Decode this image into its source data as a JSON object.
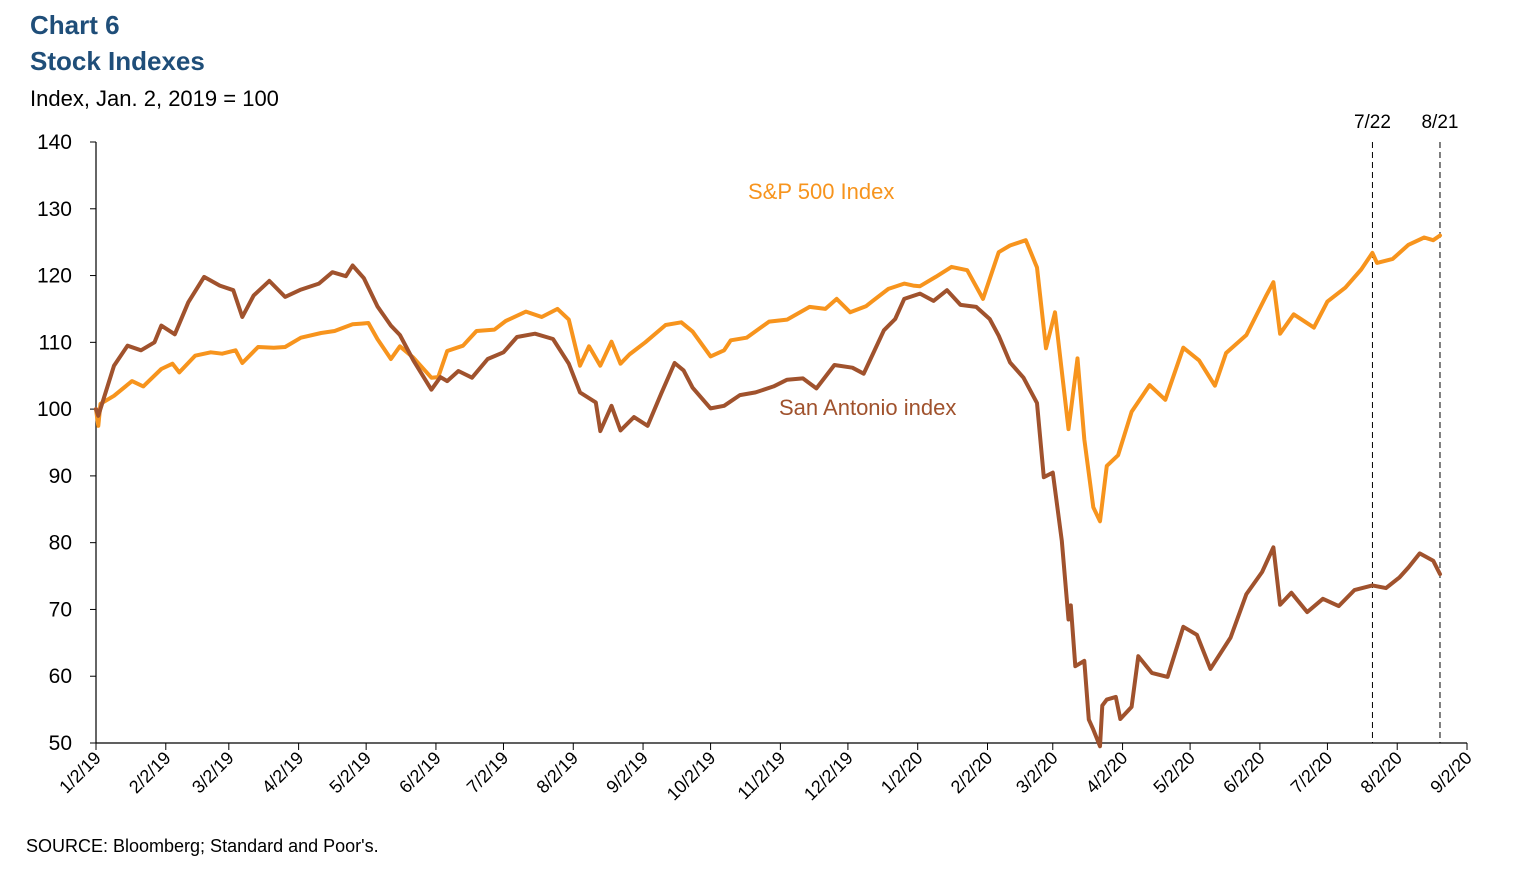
{
  "header": {
    "chart_number": "Chart 6",
    "title": "Stock Indexes",
    "subtitle": "Index, Jan. 2, 2019 = 100"
  },
  "source": "SOURCE: Bloomberg; Standard and Poor's.",
  "colors": {
    "sp500": "#f7941d",
    "san_antonio": "#a0522d",
    "title": "#1f4e79"
  },
  "chart_data": {
    "type": "line",
    "title": "Stock Indexes",
    "ylabel": "Index, Jan. 2, 2019 = 100",
    "xlabel": "",
    "ylim": [
      50,
      140
    ],
    "yticks": [
      50,
      60,
      70,
      80,
      90,
      100,
      110,
      120,
      130,
      140
    ],
    "xlim": [
      "2019-01-02",
      "2020-09-02"
    ],
    "xtick_dates": [
      "2019-01-02",
      "2019-02-02",
      "2019-03-02",
      "2019-04-02",
      "2019-05-02",
      "2019-06-02",
      "2019-07-02",
      "2019-08-02",
      "2019-09-02",
      "2019-10-02",
      "2019-11-02",
      "2019-12-02",
      "2020-01-02",
      "2020-02-02",
      "2020-03-02",
      "2020-04-02",
      "2020-05-02",
      "2020-06-02",
      "2020-07-02",
      "2020-08-02",
      "2020-09-02"
    ],
    "xtick_labels": [
      "1/2/19",
      "2/2/19",
      "3/2/19",
      "4/2/19",
      "5/2/19",
      "6/2/19",
      "7/2/19",
      "8/2/19",
      "9/2/19",
      "10/2/19",
      "11/2/19",
      "12/2/19",
      "1/2/20",
      "2/2/20",
      "3/2/20",
      "4/2/20",
      "5/2/20",
      "6/2/20",
      "7/2/20",
      "8/2/20",
      "9/2/20"
    ],
    "annotations": [
      {
        "label": "7/22",
        "date": "2020-07-22"
      },
      {
        "label": "8/21",
        "date": "2020-08-21"
      }
    ],
    "series": [
      {
        "name": "S&P 500 Index",
        "label": "S&P 500 Index",
        "points": [
          [
            "2019-01-02",
            100
          ],
          [
            "2019-01-03",
            97.5
          ],
          [
            "2019-01-04",
            100.8
          ],
          [
            "2019-01-10",
            102
          ],
          [
            "2019-01-18",
            104.2
          ],
          [
            "2019-01-23",
            103.4
          ],
          [
            "2019-01-31",
            106
          ],
          [
            "2019-02-05",
            106.8
          ],
          [
            "2019-02-08",
            105.5
          ],
          [
            "2019-02-15",
            108
          ],
          [
            "2019-02-22",
            108.5
          ],
          [
            "2019-02-27",
            108.3
          ],
          [
            "2019-03-05",
            108.8
          ],
          [
            "2019-03-08",
            106.9
          ],
          [
            "2019-03-15",
            109.3
          ],
          [
            "2019-03-22",
            109.2
          ],
          [
            "2019-03-27",
            109.3
          ],
          [
            "2019-04-03",
            110.7
          ],
          [
            "2019-04-12",
            111.4
          ],
          [
            "2019-04-18",
            111.7
          ],
          [
            "2019-04-26",
            112.7
          ],
          [
            "2019-04-30",
            112.8
          ],
          [
            "2019-05-03",
            112.9
          ],
          [
            "2019-05-07",
            110.5
          ],
          [
            "2019-05-13",
            107.5
          ],
          [
            "2019-05-17",
            109.4
          ],
          [
            "2019-05-23",
            107.7
          ],
          [
            "2019-05-31",
            104.7
          ],
          [
            "2019-06-03",
            104.8
          ],
          [
            "2019-06-07",
            108.7
          ],
          [
            "2019-06-14",
            109.5
          ],
          [
            "2019-06-20",
            111.7
          ],
          [
            "2019-06-28",
            111.9
          ],
          [
            "2019-07-03",
            113.2
          ],
          [
            "2019-07-12",
            114.6
          ],
          [
            "2019-07-19",
            113.8
          ],
          [
            "2019-07-26",
            115
          ],
          [
            "2019-07-31",
            113.4
          ],
          [
            "2019-08-05",
            106.5
          ],
          [
            "2019-08-09",
            109.4
          ],
          [
            "2019-08-14",
            106.5
          ],
          [
            "2019-08-19",
            110.1
          ],
          [
            "2019-08-23",
            106.8
          ],
          [
            "2019-08-27",
            108.2
          ],
          [
            "2019-09-03",
            110
          ],
          [
            "2019-09-12",
            112.6
          ],
          [
            "2019-09-19",
            113
          ],
          [
            "2019-09-24",
            111.6
          ],
          [
            "2019-10-02",
            107.9
          ],
          [
            "2019-10-08",
            108.8
          ],
          [
            "2019-10-11",
            110.3
          ],
          [
            "2019-10-18",
            110.7
          ],
          [
            "2019-10-28",
            113.1
          ],
          [
            "2019-11-05",
            113.4
          ],
          [
            "2019-11-15",
            115.3
          ],
          [
            "2019-11-22",
            115
          ],
          [
            "2019-11-27",
            116.5
          ],
          [
            "2019-12-03",
            114.5
          ],
          [
            "2019-12-10",
            115.4
          ],
          [
            "2019-12-13",
            116.2
          ],
          [
            "2019-12-20",
            118
          ],
          [
            "2019-12-27",
            118.8
          ],
          [
            "2019-12-31",
            118.5
          ],
          [
            "2020-01-03",
            118.4
          ],
          [
            "2020-01-10",
            119.8
          ],
          [
            "2020-01-17",
            121.3
          ],
          [
            "2020-01-24",
            120.8
          ],
          [
            "2020-01-31",
            116.5
          ],
          [
            "2020-02-07",
            123.5
          ],
          [
            "2020-02-12",
            124.5
          ],
          [
            "2020-02-19",
            125.3
          ],
          [
            "2020-02-24",
            121.2
          ],
          [
            "2020-02-28",
            109.1
          ],
          [
            "2020-03-03",
            114.5
          ],
          [
            "2020-03-09",
            97
          ],
          [
            "2020-03-13",
            107.6
          ],
          [
            "2020-03-16",
            95.5
          ],
          [
            "2020-03-20",
            85.3
          ],
          [
            "2020-03-23",
            83.2
          ],
          [
            "2020-03-26",
            91.5
          ],
          [
            "2020-03-31",
            93.1
          ],
          [
            "2020-04-06",
            99.6
          ],
          [
            "2020-04-14",
            103.6
          ],
          [
            "2020-04-21",
            101.4
          ],
          [
            "2020-04-29",
            109.2
          ],
          [
            "2020-05-06",
            107.3
          ],
          [
            "2020-05-13",
            103.5
          ],
          [
            "2020-05-18",
            108.4
          ],
          [
            "2020-05-27",
            111.1
          ],
          [
            "2020-06-05",
            117.1
          ],
          [
            "2020-06-08",
            119
          ],
          [
            "2020-06-11",
            111.3
          ],
          [
            "2020-06-17",
            114.2
          ],
          [
            "2020-06-26",
            112.2
          ],
          [
            "2020-07-02",
            116.1
          ],
          [
            "2020-07-10",
            118.2
          ],
          [
            "2020-07-17",
            120.9
          ],
          [
            "2020-07-22",
            123.4
          ],
          [
            "2020-07-24",
            121.9
          ],
          [
            "2020-07-31",
            122.5
          ],
          [
            "2020-08-07",
            124.6
          ],
          [
            "2020-08-14",
            125.7
          ],
          [
            "2020-08-18",
            125.3
          ],
          [
            "2020-08-21",
            126
          ]
        ]
      },
      {
        "name": "San Antonio index",
        "label": "San Antonio index",
        "points": [
          [
            "2019-01-02",
            100
          ],
          [
            "2019-01-03",
            99
          ],
          [
            "2019-01-10",
            106.5
          ],
          [
            "2019-01-16",
            109.5
          ],
          [
            "2019-01-22",
            108.8
          ],
          [
            "2019-01-28",
            110
          ],
          [
            "2019-01-31",
            112.5
          ],
          [
            "2019-02-06",
            111.2
          ],
          [
            "2019-02-12",
            116
          ],
          [
            "2019-02-19",
            119.8
          ],
          [
            "2019-02-26",
            118.5
          ],
          [
            "2019-03-04",
            117.8
          ],
          [
            "2019-03-08",
            113.8
          ],
          [
            "2019-03-13",
            117
          ],
          [
            "2019-03-20",
            119.2
          ],
          [
            "2019-03-27",
            116.8
          ],
          [
            "2019-04-03",
            117.9
          ],
          [
            "2019-04-11",
            118.8
          ],
          [
            "2019-04-17",
            120.5
          ],
          [
            "2019-04-23",
            119.9
          ],
          [
            "2019-04-26",
            121.5
          ],
          [
            "2019-05-01",
            119.6
          ],
          [
            "2019-05-07",
            115.4
          ],
          [
            "2019-05-13",
            112.5
          ],
          [
            "2019-05-17",
            111.1
          ],
          [
            "2019-05-23",
            107.3
          ],
          [
            "2019-05-31",
            102.9
          ],
          [
            "2019-06-04",
            104.8
          ],
          [
            "2019-06-07",
            104.2
          ],
          [
            "2019-06-12",
            105.7
          ],
          [
            "2019-06-18",
            104.7
          ],
          [
            "2019-06-25",
            107.5
          ],
          [
            "2019-07-02",
            108.5
          ],
          [
            "2019-07-08",
            110.8
          ],
          [
            "2019-07-16",
            111.3
          ],
          [
            "2019-07-24",
            110.5
          ],
          [
            "2019-07-31",
            106.8
          ],
          [
            "2019-08-05",
            102.5
          ],
          [
            "2019-08-12",
            101
          ],
          [
            "2019-08-14",
            96.7
          ],
          [
            "2019-08-19",
            100.5
          ],
          [
            "2019-08-23",
            96.8
          ],
          [
            "2019-08-29",
            98.8
          ],
          [
            "2019-09-04",
            97.5
          ],
          [
            "2019-09-10",
            102.3
          ],
          [
            "2019-09-16",
            106.9
          ],
          [
            "2019-09-20",
            105.8
          ],
          [
            "2019-09-24",
            103.2
          ],
          [
            "2019-10-02",
            100.1
          ],
          [
            "2019-10-08",
            100.5
          ],
          [
            "2019-10-15",
            102.1
          ],
          [
            "2019-10-22",
            102.5
          ],
          [
            "2019-10-30",
            103.4
          ],
          [
            "2019-11-05",
            104.4
          ],
          [
            "2019-11-12",
            104.6
          ],
          [
            "2019-11-18",
            103.1
          ],
          [
            "2019-11-26",
            106.6
          ],
          [
            "2019-12-04",
            106.2
          ],
          [
            "2019-12-09",
            105.3
          ],
          [
            "2019-12-13",
            108.2
          ],
          [
            "2019-12-18",
            111.8
          ],
          [
            "2019-12-23",
            113.5
          ],
          [
            "2019-12-27",
            116.5
          ],
          [
            "2020-01-03",
            117.3
          ],
          [
            "2020-01-09",
            116.2
          ],
          [
            "2020-01-15",
            117.8
          ],
          [
            "2020-01-21",
            115.6
          ],
          [
            "2020-01-28",
            115.3
          ],
          [
            "2020-02-03",
            113.5
          ],
          [
            "2020-02-07",
            111
          ],
          [
            "2020-02-12",
            107
          ],
          [
            "2020-02-18",
            104.7
          ],
          [
            "2020-02-24",
            100.9
          ],
          [
            "2020-02-27",
            89.8
          ],
          [
            "2020-03-02",
            90.5
          ],
          [
            "2020-03-06",
            80.3
          ],
          [
            "2020-03-09",
            68.5
          ],
          [
            "2020-03-10",
            70.6
          ],
          [
            "2020-03-12",
            61.5
          ],
          [
            "2020-03-16",
            62.3
          ],
          [
            "2020-03-18",
            53.5
          ],
          [
            "2020-03-20",
            52
          ],
          [
            "2020-03-23",
            49.5
          ],
          [
            "2020-03-24",
            55.6
          ],
          [
            "2020-03-26",
            56.5
          ],
          [
            "2020-03-30",
            56.9
          ],
          [
            "2020-04-01",
            53.6
          ],
          [
            "2020-04-06",
            55.4
          ],
          [
            "2020-04-09",
            63
          ],
          [
            "2020-04-15",
            60.5
          ],
          [
            "2020-04-22",
            59.9
          ],
          [
            "2020-04-29",
            67.4
          ],
          [
            "2020-05-05",
            66.2
          ],
          [
            "2020-05-11",
            61.1
          ],
          [
            "2020-05-20",
            65.8
          ],
          [
            "2020-05-27",
            72.3
          ],
          [
            "2020-06-03",
            75.6
          ],
          [
            "2020-06-08",
            79.3
          ],
          [
            "2020-06-11",
            70.7
          ],
          [
            "2020-06-16",
            72.5
          ],
          [
            "2020-06-23",
            69.6
          ],
          [
            "2020-06-30",
            71.6
          ],
          [
            "2020-07-07",
            70.5
          ],
          [
            "2020-07-14",
            72.9
          ],
          [
            "2020-07-22",
            73.6
          ],
          [
            "2020-07-28",
            73.2
          ],
          [
            "2020-08-03",
            74.8
          ],
          [
            "2020-08-07",
            76.3
          ],
          [
            "2020-08-12",
            78.4
          ],
          [
            "2020-08-18",
            77.3
          ],
          [
            "2020-08-21",
            75.3
          ]
        ]
      }
    ]
  }
}
